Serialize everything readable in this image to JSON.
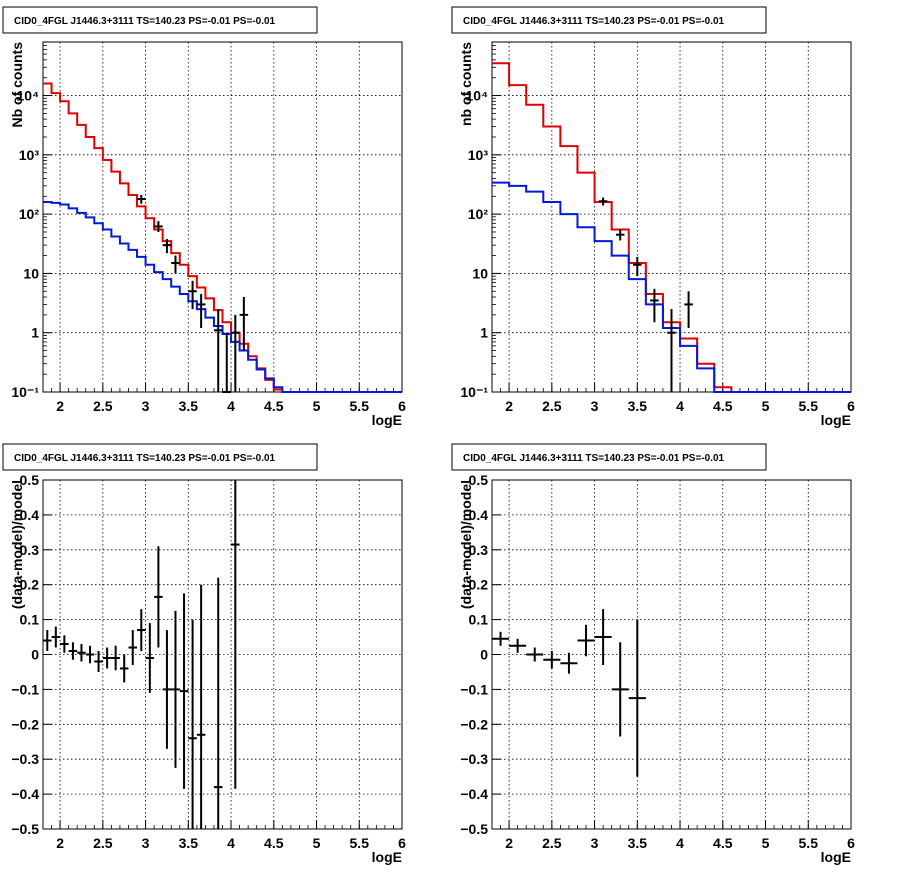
{
  "colors": {
    "data": "#000000",
    "total_model": "#e00000",
    "source_model": "#0018e0",
    "grid": "#000000"
  },
  "chart_data": [
    {
      "type": "line",
      "title": "CID0_4FGL J1446.3+3111 TS=140.23 PS=-0.01 PS=-0.01",
      "xlabel": "logE",
      "ylabel": "Nb of counts",
      "log_y": true,
      "grid": true,
      "xlim": [
        1.8,
        6.0
      ],
      "ylim": [
        0.1,
        80000
      ],
      "x_ticks": [
        2,
        2.5,
        3,
        3.5,
        4,
        4.5,
        5,
        5.5,
        6
      ],
      "x_tick_labels": [
        "2",
        "2.5",
        "3",
        "3.5",
        "4",
        "4.5",
        "5",
        "5.5",
        "6"
      ],
      "y_ticks": [
        0.1,
        1,
        10,
        100,
        1000,
        10000
      ],
      "y_tick_labels": [
        "10⁻¹",
        "1",
        "10",
        "10²",
        "10³",
        "10⁴"
      ],
      "bin_edges": [
        1.8,
        1.9,
        2.0,
        2.1,
        2.2,
        2.3,
        2.4,
        2.5,
        2.6,
        2.7,
        2.8,
        2.9,
        3.0,
        3.1,
        3.2,
        3.3,
        3.4,
        3.5,
        3.6,
        3.7,
        3.8,
        3.9,
        4.0,
        4.1,
        4.2,
        4.3,
        4.4,
        4.5,
        4.6,
        4.7,
        4.8,
        4.9,
        5.0,
        5.1,
        5.2,
        5.3,
        5.4,
        5.5,
        5.6,
        5.7,
        5.8,
        5.9,
        6.0
      ],
      "series": [
        {
          "role": "total_model",
          "values": [
            16000,
            11000,
            8000,
            5000,
            3200,
            2000,
            1300,
            820,
            520,
            330,
            210,
            135,
            85,
            55,
            35,
            22,
            14,
            9,
            5.8,
            3.8,
            2.4,
            1.5,
            1.0,
            0.65,
            0.4,
            0.25,
            0.16,
            0.11,
            0.1,
            0.1,
            0.1,
            0.1,
            0.1,
            0.1,
            0.1,
            0.1,
            0.1,
            0.1,
            0.1,
            0.1,
            0.1,
            0.1
          ]
        },
        {
          "role": "source_model",
          "values": [
            160,
            155,
            145,
            125,
            105,
            88,
            70,
            55,
            42,
            32,
            25,
            19,
            14,
            10.5,
            8,
            6,
            4.5,
            3.4,
            2.5,
            1.8,
            1.3,
            0.95,
            0.7,
            0.5,
            0.35,
            0.24,
            0.17,
            0.12,
            0.1,
            0.1,
            0.1,
            0.1,
            0.1,
            0.1,
            0.1,
            0.1,
            0.1,
            0.1,
            0.1,
            0.1,
            0.1,
            0.1
          ]
        },
        {
          "role": "data",
          "x": [
            2.95,
            3.15,
            3.25,
            3.35,
            3.55,
            3.65,
            3.85,
            3.95,
            4.05,
            4.15
          ],
          "y": [
            180,
            62,
            30,
            15,
            5,
            3,
            1.1,
            0.1,
            1.0,
            2.0
          ],
          "ylo": [
            150,
            50,
            22,
            10,
            2.5,
            1.2,
            0.1,
            0.1,
            0.1,
            0.5
          ],
          "yhi": [
            210,
            76,
            38,
            20,
            7.5,
            4.5,
            2.5,
            1.0,
            2.0,
            4.0
          ]
        }
      ]
    },
    {
      "type": "line",
      "title": "CID0_4FGL J1446.3+3111 TS=140.23 PS=-0.01 PS=-0.01",
      "xlabel": "logE",
      "ylabel": "nb of counts",
      "log_y": true,
      "grid": true,
      "xlim": [
        1.8,
        6.0
      ],
      "ylim": [
        0.1,
        80000
      ],
      "x_ticks": [
        2,
        2.5,
        3,
        3.5,
        4,
        4.5,
        5,
        5.5,
        6
      ],
      "x_tick_labels": [
        "2",
        "2.5",
        "3",
        "3.5",
        "4",
        "4.5",
        "5",
        "5.5",
        "6"
      ],
      "y_ticks": [
        0.1,
        1,
        10,
        100,
        1000,
        10000
      ],
      "y_tick_labels": [
        "10⁻¹",
        "1",
        "10",
        "10²",
        "10³",
        "10⁴"
      ],
      "bin_edges": [
        1.8,
        2.0,
        2.2,
        2.4,
        2.6,
        2.8,
        3.0,
        3.2,
        3.4,
        3.6,
        3.8,
        4.0,
        4.2,
        4.4,
        4.6,
        4.8,
        5.0,
        5.2,
        5.4,
        5.6,
        5.8,
        6.0
      ],
      "series": [
        {
          "role": "total_model",
          "values": [
            35000,
            15000,
            7000,
            3000,
            1400,
            500,
            160,
            55,
            15,
            4.5,
            1.5,
            0.8,
            0.3,
            0.12,
            0.1,
            0.1,
            0.1,
            0.1,
            0.1,
            0.1,
            0.1
          ]
        },
        {
          "role": "source_model",
          "values": [
            340,
            300,
            240,
            160,
            100,
            60,
            35,
            20,
            8,
            3,
            1.2,
            0.6,
            0.25,
            0.1,
            0.1,
            0.1,
            0.1,
            0.1,
            0.1,
            0.1,
            0.1
          ]
        },
        {
          "role": "data",
          "x": [
            3.1,
            3.3,
            3.5,
            3.7,
            3.9,
            4.1
          ],
          "y": [
            165,
            45,
            14,
            3.5,
            1.0,
            3.0
          ],
          "ylo": [
            140,
            36,
            9,
            1.5,
            0.1,
            1.2
          ],
          "yhi": [
            190,
            55,
            19,
            5.5,
            2.5,
            5.0
          ]
        }
      ]
    },
    {
      "type": "scatter",
      "title": "CID0_4FGL J1446.3+3111 TS=140.23 PS=-0.01 PS=-0.01",
      "xlabel": "logE",
      "ylabel": "(data-model)/model",
      "grid": true,
      "xlim": [
        1.8,
        6.0
      ],
      "ylim": [
        -0.5,
        0.5
      ],
      "x_ticks": [
        2,
        2.5,
        3,
        3.5,
        4,
        4.5,
        5,
        5.5,
        6
      ],
      "x_tick_labels": [
        "2",
        "2.5",
        "3",
        "3.5",
        "4",
        "4.5",
        "5",
        "5.5",
        "6"
      ],
      "y_ticks": [
        -0.5,
        -0.4,
        -0.3,
        -0.2,
        -0.1,
        0,
        0.1,
        0.2,
        0.3,
        0.4,
        0.5
      ],
      "y_tick_labels": [
        "−0.5",
        "−0.4",
        "−0.3",
        "−0.2",
        "−0.1",
        "0",
        "0.1",
        "0.2",
        "0.3",
        "0.4",
        "0.5"
      ],
      "bin_width": 0.1,
      "series": [
        {
          "role": "data",
          "x": [
            1.85,
            1.95,
            2.05,
            2.15,
            2.25,
            2.35,
            2.45,
            2.55,
            2.65,
            2.75,
            2.85,
            2.95,
            3.05,
            3.15,
            3.25,
            3.35,
            3.45,
            3.55,
            3.65,
            3.85,
            4.05
          ],
          "y": [
            0.04,
            0.05,
            0.03,
            0.01,
            0.005,
            0.0,
            -0.02,
            -0.01,
            -0.01,
            -0.04,
            0.02,
            0.07,
            -0.01,
            0.165,
            -0.1,
            -0.1,
            -0.105,
            -0.24,
            -0.23,
            -0.38,
            0.315
          ],
          "err": [
            0.03,
            0.03,
            0.025,
            0.025,
            0.025,
            0.025,
            0.03,
            0.03,
            0.035,
            0.04,
            0.05,
            0.06,
            0.1,
            0.145,
            0.17,
            0.225,
            0.28,
            0.34,
            0.43,
            0.6,
            0.7
          ]
        }
      ]
    },
    {
      "type": "scatter",
      "title": "CID0_4FGL J1446.3+3111 TS=140.23 PS=-0.01 PS=-0.01",
      "xlabel": "logE",
      "ylabel": "(data-model)/model",
      "grid": true,
      "xlim": [
        1.8,
        6.0
      ],
      "ylim": [
        -0.5,
        0.5
      ],
      "x_ticks": [
        2,
        2.5,
        3,
        3.5,
        4,
        4.5,
        5,
        5.5,
        6
      ],
      "x_tick_labels": [
        "2",
        "2.5",
        "3",
        "3.5",
        "4",
        "4.5",
        "5",
        "5.5",
        "6"
      ],
      "y_ticks": [
        -0.5,
        -0.4,
        -0.3,
        -0.2,
        -0.1,
        0,
        0.1,
        0.2,
        0.3,
        0.4,
        0.5
      ],
      "y_tick_labels": [
        "−0.5",
        "−0.4",
        "−0.3",
        "−0.2",
        "−0.1",
        "0",
        "0.1",
        "0.2",
        "0.3",
        "0.4",
        "0.5"
      ],
      "bin_width": 0.2,
      "series": [
        {
          "role": "data",
          "x": [
            1.9,
            2.1,
            2.3,
            2.5,
            2.7,
            2.9,
            3.1,
            3.3,
            3.5
          ],
          "y": [
            0.045,
            0.025,
            0.0,
            -0.015,
            -0.025,
            0.04,
            0.05,
            -0.1,
            -0.125
          ],
          "err": [
            0.02,
            0.02,
            0.02,
            0.025,
            0.03,
            0.045,
            0.08,
            0.135,
            0.225
          ]
        }
      ]
    }
  ]
}
